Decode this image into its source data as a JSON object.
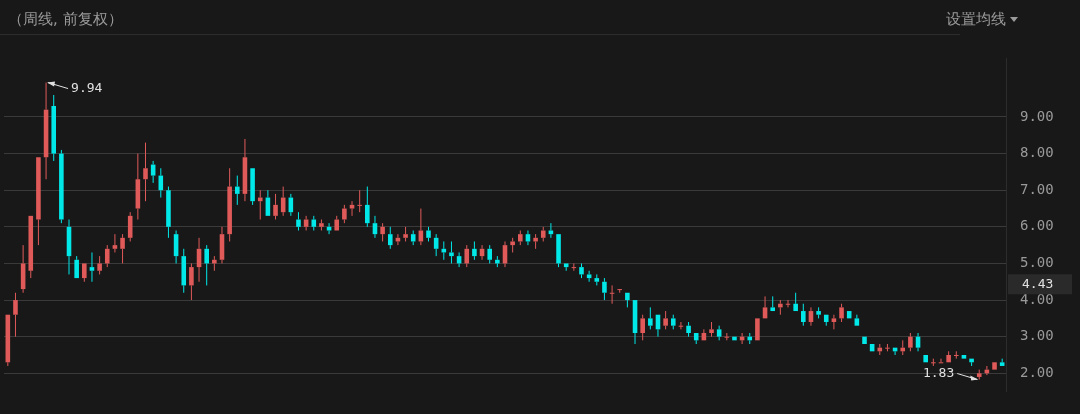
{
  "chart_data": {
    "type": "candlestick",
    "title": "（周线, 前复权）",
    "categories": [
      null,
      null,
      null,
      null,
      null,
      null,
      null,
      null,
      null,
      null,
      null,
      null,
      null,
      null,
      null,
      null,
      null,
      null,
      null,
      null,
      null,
      null,
      null,
      null,
      null,
      null,
      null,
      null,
      null,
      null,
      null,
      null,
      null,
      null,
      null,
      null,
      null,
      null,
      null,
      null,
      null,
      null,
      null,
      null,
      null,
      null,
      null,
      null,
      null,
      null,
      null,
      null,
      null,
      null,
      null,
      null,
      null,
      null,
      null,
      null,
      null,
      null,
      null,
      null,
      null,
      null,
      null,
      null,
      null,
      null,
      null,
      null,
      null,
      null,
      null,
      null,
      null,
      null,
      null,
      null,
      null,
      null,
      null,
      null,
      null,
      null,
      null,
      null,
      null,
      null,
      null,
      null,
      null,
      null,
      null,
      null,
      null,
      null,
      null,
      null,
      null,
      null,
      null,
      null,
      null,
      null,
      null,
      null,
      null,
      null,
      null,
      null,
      null,
      null,
      null,
      null,
      null,
      null,
      null,
      null,
      null,
      null,
      null,
      null,
      null,
      null,
      null,
      null,
      null,
      null,
      null
    ],
    "ohlc": [
      [
        2.3,
        3.6,
        2.2,
        3.6
      ],
      [
        3.6,
        4.2,
        3.0,
        4.0
      ],
      [
        4.3,
        5.5,
        4.2,
        5.0
      ],
      [
        4.8,
        6.3,
        4.6,
        6.3
      ],
      [
        6.2,
        7.9,
        5.5,
        7.9
      ],
      [
        7.9,
        9.94,
        7.3,
        9.2
      ],
      [
        9.3,
        9.6,
        7.8,
        8.0
      ],
      [
        8.0,
        8.1,
        6.1,
        6.2
      ],
      [
        6.0,
        6.2,
        4.7,
        5.2
      ],
      [
        5.1,
        5.2,
        4.6,
        4.6
      ],
      [
        4.6,
        5.0,
        4.5,
        5.0
      ],
      [
        4.9,
        5.3,
        4.5,
        4.8
      ],
      [
        4.8,
        5.2,
        4.7,
        5.0
      ],
      [
        5.0,
        5.5,
        4.9,
        5.4
      ],
      [
        5.4,
        5.8,
        5.3,
        5.5
      ],
      [
        5.4,
        5.8,
        5.0,
        5.7
      ],
      [
        5.7,
        6.4,
        5.6,
        6.3
      ],
      [
        6.5,
        8.0,
        6.2,
        7.3
      ],
      [
        7.3,
        8.3,
        6.7,
        7.6
      ],
      [
        7.7,
        7.8,
        7.2,
        7.4
      ],
      [
        7.4,
        7.6,
        6.8,
        7.0
      ],
      [
        7.0,
        7.1,
        5.7,
        6.0
      ],
      [
        5.8,
        5.9,
        5.0,
        5.2
      ],
      [
        5.2,
        5.4,
        4.2,
        4.4
      ],
      [
        4.4,
        5.0,
        4.0,
        4.9
      ],
      [
        4.9,
        5.7,
        4.5,
        5.4
      ],
      [
        5.4,
        5.5,
        4.4,
        5.0
      ],
      [
        5.0,
        5.2,
        4.8,
        5.1
      ],
      [
        5.1,
        6.0,
        5.0,
        5.8
      ],
      [
        5.8,
        7.6,
        5.6,
        7.1
      ],
      [
        7.1,
        7.4,
        6.6,
        6.9
      ],
      [
        6.9,
        8.4,
        6.7,
        7.9
      ],
      [
        7.6,
        7.6,
        6.6,
        6.7
      ],
      [
        6.7,
        7.0,
        6.2,
        6.8
      ],
      [
        6.8,
        7.0,
        6.3,
        6.3
      ],
      [
        6.3,
        6.9,
        6.2,
        6.6
      ],
      [
        6.4,
        7.1,
        6.3,
        6.8
      ],
      [
        6.8,
        6.9,
        6.3,
        6.4
      ],
      [
        6.2,
        6.4,
        5.9,
        6.0
      ],
      [
        6.0,
        6.3,
        5.9,
        6.2
      ],
      [
        6.2,
        6.3,
        5.9,
        6.0
      ],
      [
        6.0,
        6.2,
        5.9,
        6.1
      ],
      [
        6.0,
        6.1,
        5.8,
        5.9
      ],
      [
        5.9,
        6.3,
        5.9,
        6.2
      ],
      [
        6.2,
        6.6,
        6.1,
        6.5
      ],
      [
        6.5,
        6.7,
        6.3,
        6.6
      ],
      [
        6.6,
        7.0,
        6.4,
        6.6
      ],
      [
        6.6,
        7.1,
        6.0,
        6.1
      ],
      [
        6.1,
        6.3,
        5.7,
        5.8
      ],
      [
        5.8,
        6.1,
        5.6,
        6.0
      ],
      [
        5.8,
        6.0,
        5.4,
        5.5
      ],
      [
        5.6,
        5.8,
        5.5,
        5.7
      ],
      [
        5.7,
        6.0,
        5.6,
        5.8
      ],
      [
        5.8,
        5.9,
        5.5,
        5.6
      ],
      [
        5.6,
        6.5,
        5.5,
        5.9
      ],
      [
        5.9,
        6.0,
        5.6,
        5.7
      ],
      [
        5.7,
        5.8,
        5.2,
        5.4
      ],
      [
        5.4,
        5.6,
        5.1,
        5.3
      ],
      [
        5.3,
        5.6,
        5.0,
        5.2
      ],
      [
        5.2,
        5.3,
        4.9,
        5.0
      ],
      [
        5.0,
        5.5,
        4.9,
        5.4
      ],
      [
        5.4,
        5.6,
        5.1,
        5.2
      ],
      [
        5.2,
        5.5,
        5.1,
        5.4
      ],
      [
        5.4,
        5.5,
        5.0,
        5.1
      ],
      [
        5.1,
        5.2,
        4.9,
        5.0
      ],
      [
        5.0,
        5.6,
        4.9,
        5.5
      ],
      [
        5.5,
        5.7,
        5.3,
        5.6
      ],
      [
        5.6,
        5.9,
        5.5,
        5.8
      ],
      [
        5.8,
        5.9,
        5.5,
        5.6
      ],
      [
        5.6,
        5.8,
        5.4,
        5.7
      ],
      [
        5.7,
        6.0,
        5.6,
        5.9
      ],
      [
        5.9,
        6.1,
        5.7,
        5.8
      ],
      [
        5.8,
        5.8,
        4.9,
        5.0
      ],
      [
        5.0,
        5.0,
        4.8,
        4.9
      ],
      [
        4.9,
        5.0,
        4.8,
        4.9
      ],
      [
        4.9,
        5.0,
        4.6,
        4.7
      ],
      [
        4.7,
        4.8,
        4.5,
        4.6
      ],
      [
        4.6,
        4.7,
        4.4,
        4.5
      ],
      [
        4.5,
        4.6,
        4.0,
        4.2
      ],
      [
        4.2,
        4.4,
        3.9,
        4.2
      ],
      [
        4.3,
        4.3,
        4.2,
        4.3
      ],
      [
        4.2,
        4.2,
        3.8,
        4.0
      ],
      [
        4.0,
        4.0,
        2.8,
        3.1
      ],
      [
        3.1,
        3.6,
        2.9,
        3.5
      ],
      [
        3.5,
        3.8,
        3.2,
        3.3
      ],
      [
        3.6,
        3.6,
        3.0,
        3.2
      ],
      [
        3.3,
        3.7,
        3.2,
        3.5
      ],
      [
        3.5,
        3.6,
        3.2,
        3.3
      ],
      [
        3.3,
        3.4,
        3.2,
        3.3
      ],
      [
        3.3,
        3.4,
        3.0,
        3.1
      ],
      [
        3.1,
        3.1,
        2.8,
        2.9
      ],
      [
        2.9,
        3.2,
        2.9,
        3.1
      ],
      [
        3.1,
        3.4,
        3.0,
        3.2
      ],
      [
        3.2,
        3.3,
        2.9,
        3.0
      ],
      [
        3.0,
        3.1,
        2.9,
        3.0
      ],
      [
        3.0,
        3.0,
        2.9,
        2.9
      ],
      [
        2.9,
        3.1,
        2.8,
        3.0
      ],
      [
        3.0,
        3.1,
        2.8,
        2.9
      ],
      [
        2.9,
        3.5,
        2.9,
        3.5
      ],
      [
        3.5,
        4.1,
        3.5,
        3.8
      ],
      [
        3.8,
        4.1,
        3.7,
        3.7
      ],
      [
        3.8,
        4.0,
        3.6,
        3.9
      ],
      [
        3.9,
        4.0,
        3.8,
        3.9
      ],
      [
        3.9,
        4.2,
        3.7,
        3.7
      ],
      [
        3.7,
        3.9,
        3.3,
        3.4
      ],
      [
        3.4,
        3.8,
        3.3,
        3.7
      ],
      [
        3.7,
        3.8,
        3.5,
        3.6
      ],
      [
        3.6,
        3.6,
        3.3,
        3.4
      ],
      [
        3.4,
        3.6,
        3.2,
        3.5
      ],
      [
        3.5,
        3.9,
        3.4,
        3.8
      ],
      [
        3.7,
        3.7,
        3.5,
        3.5
      ],
      [
        3.5,
        3.6,
        3.3,
        3.3
      ],
      [
        3.0,
        3.0,
        2.8,
        2.8
      ],
      [
        2.8,
        2.8,
        2.6,
        2.6
      ],
      [
        2.6,
        2.8,
        2.5,
        2.7
      ],
      [
        2.7,
        2.8,
        2.6,
        2.7
      ],
      [
        2.7,
        2.7,
        2.5,
        2.6
      ],
      [
        2.6,
        2.9,
        2.5,
        2.7
      ],
      [
        2.7,
        3.1,
        2.6,
        3.0
      ],
      [
        3.0,
        3.1,
        2.6,
        2.7
      ],
      [
        2.5,
        2.5,
        2.3,
        2.3
      ],
      [
        2.3,
        2.4,
        2.2,
        2.3
      ],
      [
        2.3,
        2.4,
        2.3,
        2.3
      ],
      [
        2.3,
        2.6,
        2.3,
        2.5
      ],
      [
        2.5,
        2.6,
        2.4,
        2.5
      ],
      [
        2.5,
        2.5,
        2.4,
        2.4
      ],
      [
        2.4,
        2.4,
        2.2,
        2.3
      ],
      [
        1.9,
        2.1,
        1.83,
        2.0
      ],
      [
        2.0,
        2.2,
        1.95,
        2.1
      ],
      [
        2.1,
        2.3,
        2.1,
        2.3
      ],
      [
        2.3,
        2.4,
        2.2,
        2.2
      ]
    ],
    "colors": [
      "#e05a5a",
      "#e05a5a",
      "#e05a5a",
      "#e05a5a",
      "#e05a5a",
      "#e05a5a",
      "#00e8e8",
      "#00e8e8",
      "#00e8e8",
      "#00e8e8",
      "#e05a5a",
      "#00e8e8",
      "#e05a5a",
      "#e05a5a",
      "#e05a5a",
      "#e05a5a",
      "#e05a5a",
      "#e05a5a",
      "#e05a5a",
      "#00e8e8",
      "#00e8e8",
      "#00e8e8",
      "#00e8e8",
      "#00e8e8",
      "#e05a5a",
      "#e05a5a",
      "#00e8e8",
      "#e05a5a",
      "#e05a5a",
      "#e05a5a",
      "#00e8e8",
      "#e05a5a",
      "#00e8e8",
      "#e05a5a",
      "#00e8e8",
      "#e05a5a",
      "#e05a5a",
      "#00e8e8",
      "#00e8e8",
      "#e05a5a",
      "#00e8e8",
      "#e05a5a",
      "#00e8e8",
      "#e05a5a",
      "#e05a5a",
      "#e05a5a",
      "#e05a5a",
      "#00e8e8",
      "#00e8e8",
      "#e05a5a",
      "#00e8e8",
      "#e05a5a",
      "#e05a5a",
      "#00e8e8",
      "#e05a5a",
      "#00e8e8",
      "#00e8e8",
      "#00e8e8",
      "#00e8e8",
      "#00e8e8",
      "#e05a5a",
      "#00e8e8",
      "#e05a5a",
      "#00e8e8",
      "#00e8e8",
      "#e05a5a",
      "#e05a5a",
      "#e05a5a",
      "#00e8e8",
      "#e05a5a",
      "#e05a5a",
      "#00e8e8",
      "#00e8e8",
      "#00e8e8",
      "#e05a5a",
      "#00e8e8",
      "#00e8e8",
      "#00e8e8",
      "#00e8e8",
      "#e05a5a",
      "#e05a5a",
      "#00e8e8",
      "#00e8e8",
      "#e05a5a",
      "#00e8e8",
      "#00e8e8",
      "#e05a5a",
      "#00e8e8",
      "#e05a5a",
      "#00e8e8",
      "#00e8e8",
      "#e05a5a",
      "#e05a5a",
      "#00e8e8",
      "#e05a5a",
      "#00e8e8",
      "#e05a5a",
      "#00e8e8",
      "#e05a5a",
      "#e05a5a",
      "#00e8e8",
      "#e05a5a",
      "#e05a5a",
      "#00e8e8",
      "#00e8e8",
      "#e05a5a",
      "#00e8e8",
      "#00e8e8",
      "#e05a5a",
      "#e05a5a",
      "#00e8e8",
      "#00e8e8",
      "#00e8e8",
      "#00e8e8",
      "#e05a5a",
      "#e05a5a",
      "#00e8e8",
      "#e05a5a",
      "#e05a5a",
      "#00e8e8",
      "#00e8e8",
      "#e05a5a",
      "#e05a5a",
      "#e05a5a",
      "#e05a5a",
      "#00e8e8",
      "#00e8e8",
      "#e05a5a",
      "#e05a5a",
      "#e05a5a",
      "#00e8e8"
    ],
    "ylim": [
      1.5,
      10.6
    ],
    "yticks": [
      {
        "value": 2,
        "label": "2.00"
      },
      {
        "value": 3,
        "label": "3.00"
      },
      {
        "value": 4,
        "label": "4.00"
      },
      {
        "value": 5,
        "label": "5.00"
      },
      {
        "value": 6,
        "label": "6.00"
      },
      {
        "value": 7,
        "label": "7.00"
      },
      {
        "value": 8,
        "label": "8.00"
      },
      {
        "value": 9,
        "label": "9.00"
      }
    ],
    "grid": "y",
    "tick_labels": "y",
    "annotations": [
      "9.94",
      "1.83",
      "4.43",
      "设置均线"
    ]
  }
}
